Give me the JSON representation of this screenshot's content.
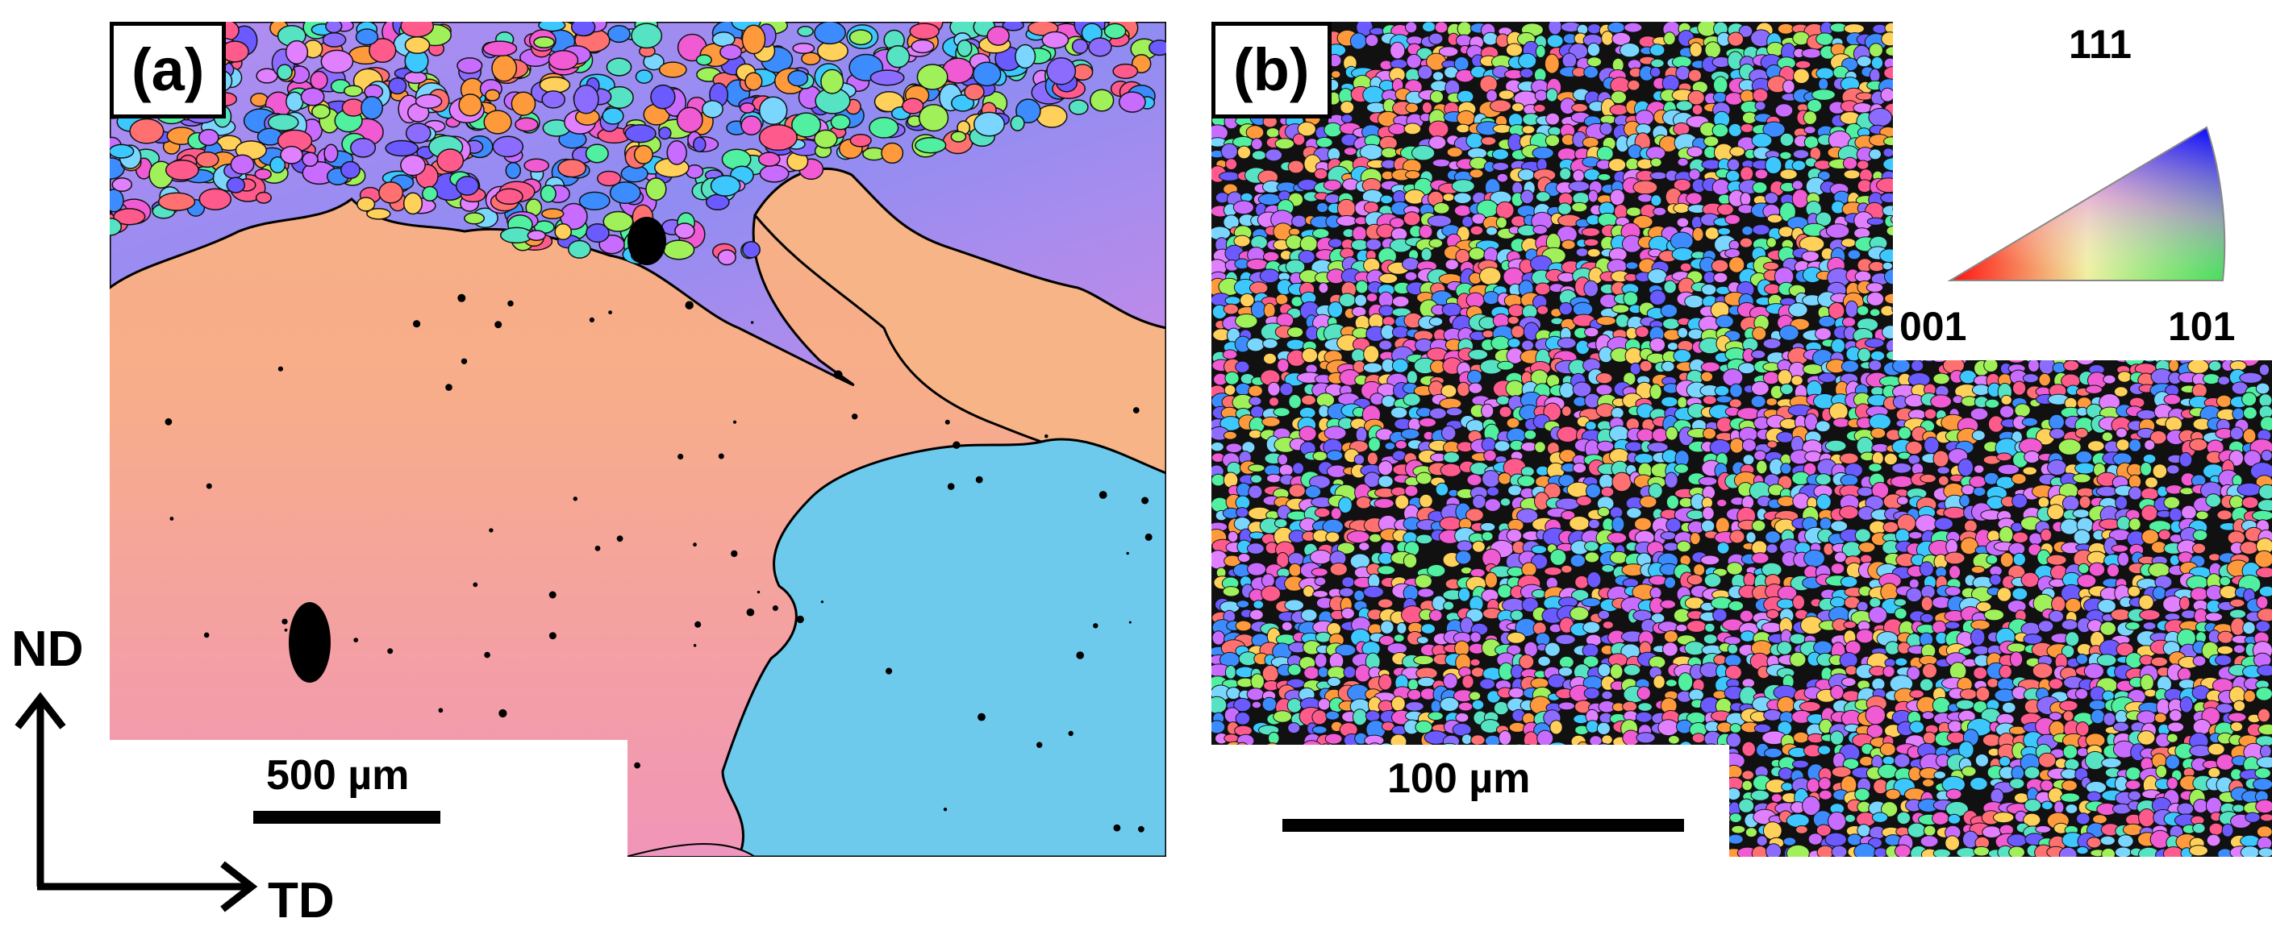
{
  "panel_a": {
    "label": "(a)",
    "scale_text": "500 µm"
  },
  "panel_b": {
    "label": "(b)",
    "scale_text": "100 µm"
  },
  "ipf_key": {
    "top": "111",
    "left": "001",
    "right": "101"
  },
  "axes": {
    "vertical": "ND",
    "horizontal": "TD"
  },
  "colors": {
    "orange_grain": "#f6b284",
    "pink_grain": "#f19bb3",
    "cyan_grain": "#6ecbec",
    "violet_band": "#9b7ff0",
    "boundary": "#000000"
  }
}
